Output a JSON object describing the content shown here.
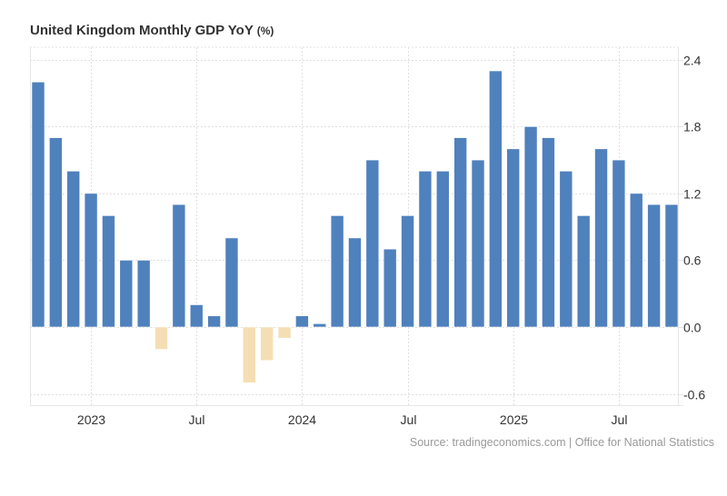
{
  "page": {
    "title": "United Kingdom Monthly GDP YoY",
    "title_unit": "(%)",
    "source": "Source: tradingeconomics.com | Office for National Statistics"
  },
  "colors": {
    "positive": "#4f81bd",
    "negative": "#f5deb3",
    "grid": "#e0e0e0",
    "axis": "#e6e6e6",
    "text": "#333333"
  },
  "chart_data": {
    "type": "bar",
    "title": "United Kingdom Monthly GDP YoY (%)",
    "xlabel": "",
    "ylabel": "",
    "ylim": [
      -0.7,
      2.65
    ],
    "y_ticks": [
      2.4,
      1.8,
      1.2,
      0.6,
      0.0,
      -0.6
    ],
    "y_tick_labels": [
      "2.4",
      "1.8",
      "1.2",
      "0.6",
      "0.0",
      "-0.6"
    ],
    "y_axis_position": "right",
    "grid": true,
    "legend": "none",
    "categories": [
      "Oct 2022",
      "Nov 2022",
      "Dec 2022",
      "Jan 2023",
      "Feb 2023",
      "Mar 2023",
      "Apr 2023",
      "May 2023",
      "Jun 2023",
      "Jul 2023",
      "Aug 2023",
      "Sep 2023",
      "Oct 2023",
      "Nov 2023",
      "Dec 2023",
      "Jan 2024",
      "Feb 2024",
      "Mar 2024",
      "Apr 2024",
      "May 2024",
      "Jun 2024",
      "Jul 2024",
      "Aug 2024",
      "Sep 2024",
      "Oct 2024",
      "Nov 2024",
      "Dec 2024",
      "Jan 2025",
      "Feb 2025",
      "Mar 2025",
      "Apr 2025",
      "May 2025",
      "Jun 2025",
      "Jul 2025",
      "Aug 2025",
      "Sep 2025",
      "Oct 2025"
    ],
    "values": [
      2.2,
      1.7,
      1.4,
      1.2,
      1.0,
      0.6,
      0.6,
      -0.2,
      1.1,
      0.2,
      0.1,
      0.8,
      -0.5,
      -0.3,
      -0.1,
      0.1,
      0.03,
      1.0,
      0.8,
      1.5,
      0.7,
      1.0,
      1.4,
      1.4,
      1.7,
      1.5,
      2.3,
      1.6,
      1.8,
      1.7,
      1.4,
      1.0,
      1.6,
      1.5,
      1.2,
      1.1,
      1.1
    ],
    "x_ticks": [
      {
        "index": 3,
        "label": "2023"
      },
      {
        "index": 9,
        "label": "Jul"
      },
      {
        "index": 15,
        "label": "2024"
      },
      {
        "index": 21,
        "label": "Jul"
      },
      {
        "index": 27,
        "label": "2025"
      },
      {
        "index": 33,
        "label": "Jul"
      }
    ]
  }
}
